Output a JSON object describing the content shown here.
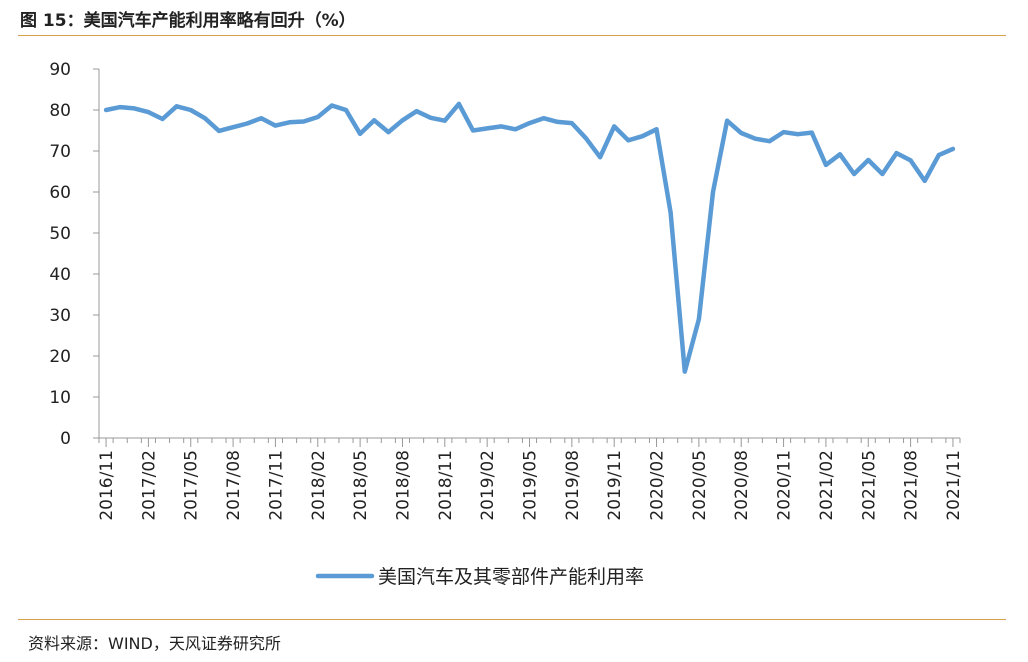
{
  "header": {
    "title": "图 15：美国汽车产能利用率略有回升（%）"
  },
  "footer": {
    "source": "资料来源：WIND，天风证券研究所"
  },
  "chart_data": {
    "type": "line",
    "title": "图 15：美国汽车产能利用率略有回升（%）",
    "xlabel": "",
    "ylabel": "",
    "ylim": [
      0,
      90
    ],
    "yticks": [
      "0",
      "10",
      "20",
      "30",
      "40",
      "50",
      "60",
      "70",
      "80",
      "90"
    ],
    "xtick_labels": [
      "2016/11",
      "2017/02",
      "2017/05",
      "2017/08",
      "2017/11",
      "2018/02",
      "2018/05",
      "2018/08",
      "2018/11",
      "2019/02",
      "2019/05",
      "2019/08",
      "2019/11",
      "2020/02",
      "2020/05",
      "2020/08",
      "2020/11",
      "2021/02",
      "2021/05",
      "2021/08",
      "2021/11"
    ],
    "grid": false,
    "legend_position": "bottom-center",
    "line_color": "#5b9bd5",
    "series": [
      {
        "name": "美国汽车及其零部件产能利用率",
        "x": [
          "2016/11",
          "2016/12",
          "2017/01",
          "2017/02",
          "2017/03",
          "2017/04",
          "2017/05",
          "2017/06",
          "2017/07",
          "2017/08",
          "2017/09",
          "2017/10",
          "2017/11",
          "2017/12",
          "2018/01",
          "2018/02",
          "2018/03",
          "2018/04",
          "2018/05",
          "2018/06",
          "2018/07",
          "2018/08",
          "2018/09",
          "2018/10",
          "2018/11",
          "2018/12",
          "2019/01",
          "2019/02",
          "2019/03",
          "2019/04",
          "2019/05",
          "2019/06",
          "2019/07",
          "2019/08",
          "2019/09",
          "2019/10",
          "2019/11",
          "2019/12",
          "2020/01",
          "2020/02",
          "2020/03",
          "2020/04",
          "2020/05",
          "2020/06",
          "2020/07",
          "2020/08",
          "2020/09",
          "2020/10",
          "2020/11",
          "2020/12",
          "2021/01",
          "2021/02",
          "2021/03",
          "2021/04",
          "2021/05",
          "2021/06",
          "2021/07",
          "2021/08",
          "2021/09",
          "2021/10",
          "2021/11"
        ],
        "values": [
          80.0,
          80.7,
          80.4,
          79.5,
          77.8,
          80.9,
          80.0,
          78.0,
          74.9,
          75.8,
          76.7,
          78.0,
          76.2,
          77.0,
          77.2,
          78.3,
          81.1,
          80.0,
          74.2,
          77.5,
          74.6,
          77.5,
          79.7,
          78.1,
          77.4,
          81.5,
          75.0,
          75.5,
          76.0,
          75.3,
          76.8,
          78.0,
          77.1,
          76.8,
          73.1,
          68.5,
          76.0,
          72.6,
          73.6,
          75.3,
          55.0,
          16.2,
          29.0,
          60.0,
          77.4,
          74.4,
          73.0,
          72.4,
          74.6,
          74.1,
          74.5,
          66.6,
          69.2,
          64.4,
          67.8,
          64.4,
          69.5,
          67.7,
          62.7,
          69.0,
          70.5
        ]
      }
    ]
  }
}
